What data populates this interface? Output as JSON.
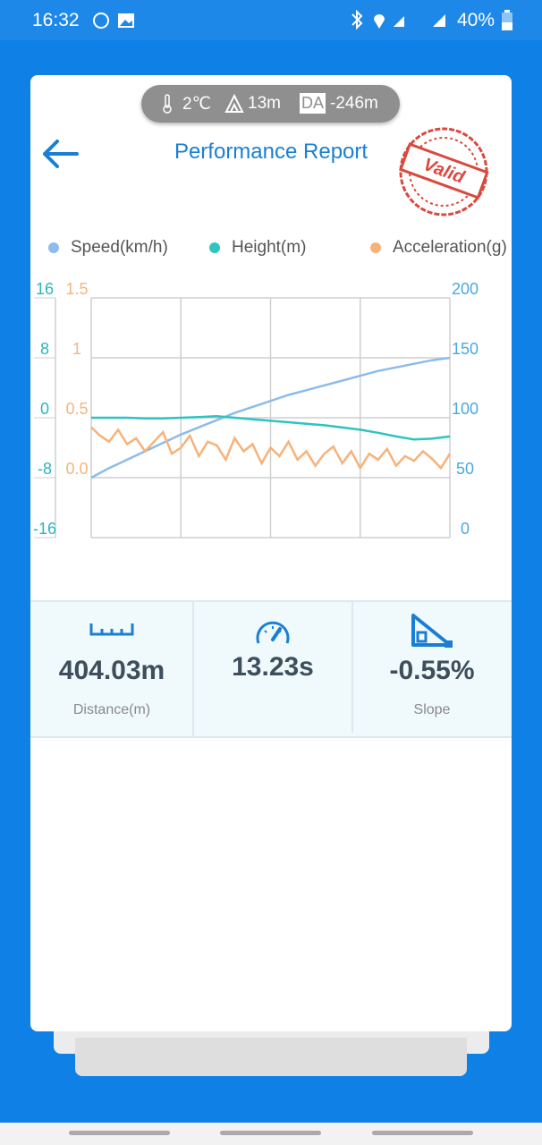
{
  "status_bar": {
    "time": "16:32",
    "battery": "40%"
  },
  "conditions": {
    "temperature": "2℃",
    "altitude": "13m",
    "da_label": "DA",
    "density_altitude": "-246m"
  },
  "header": {
    "title": "Performance Report",
    "stamp": "Valid"
  },
  "chart_data": {
    "type": "line",
    "series": [
      {
        "name": "Speed(km/h)",
        "color": "#8cbcea",
        "axis": "y2",
        "values": [
          50,
          58,
          65,
          72,
          79,
          86,
          92,
          98,
          104,
          109,
          114,
          119,
          123,
          127,
          131,
          135,
          139,
          142,
          145,
          148,
          150
        ]
      },
      {
        "name": "Height(m)",
        "color": "#2ec4c0",
        "axis": "y",
        "values": [
          0,
          0,
          0,
          -0.1,
          -0.1,
          0,
          0.1,
          0.2,
          0,
          -0.2,
          -0.4,
          -0.6,
          -0.8,
          -1,
          -1.3,
          -1.6,
          -2,
          -2.5,
          -2.9,
          -2.8,
          -2.5
        ]
      },
      {
        "name": "Acceleration(g)",
        "color": "#f7b27a",
        "axis": "y3",
        "values": [
          0.42,
          0.35,
          0.3,
          0.4,
          0.28,
          0.33,
          0.22,
          0.3,
          0.38,
          0.2,
          0.25,
          0.35,
          0.18,
          0.3,
          0.27,
          0.15,
          0.33,
          0.22,
          0.28,
          0.12,
          0.25,
          0.18,
          0.3,
          0.15,
          0.22,
          0.1,
          0.2,
          0.26,
          0.12,
          0.22,
          0.08,
          0.2,
          0.15,
          0.24,
          0.1,
          0.18,
          0.14,
          0.22,
          0.16,
          0.08,
          0.2
        ]
      }
    ],
    "ylim": [
      -16,
      16
    ],
    "yticks": [
      16,
      8,
      0,
      -8,
      -16
    ],
    "ycolor": "#2bb5c0",
    "y3lim": [
      -0.5,
      1.5
    ],
    "y3ticks": [
      1.5,
      1,
      0.5,
      {
        "value": 0,
        "label": "0.0"
      }
    ],
    "y3color": "#f5b57c",
    "y2lim": [
      0,
      200
    ],
    "y2ticks": [
      200,
      150,
      100,
      50,
      0
    ],
    "y2color": "#4aa8e0",
    "grid": true
  },
  "stats": [
    {
      "value": "404.03m",
      "label": "Distance(m)"
    },
    {
      "value": "13.23s"
    },
    {
      "value": "-0.55%",
      "label": "Slope"
    }
  ]
}
